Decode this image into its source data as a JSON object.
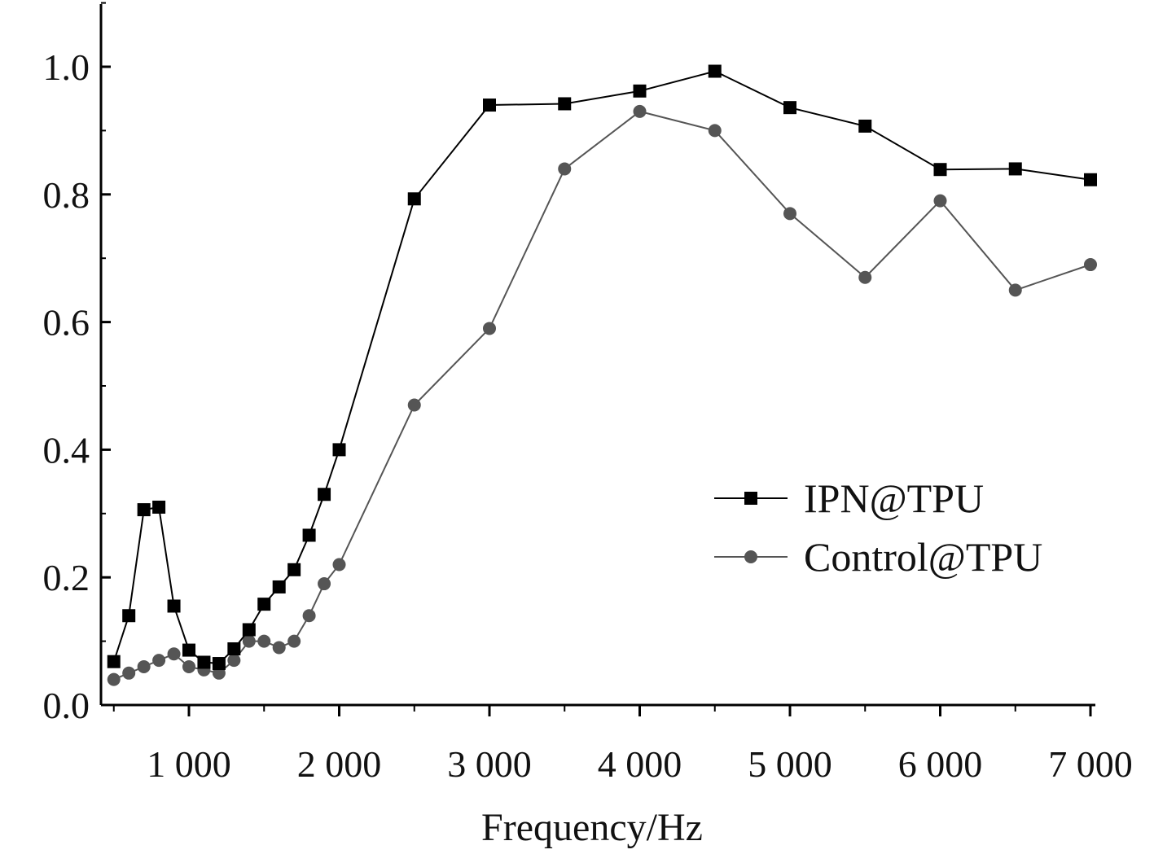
{
  "chart_data": {
    "type": "line",
    "title": "",
    "xlabel": "Frequency/Hz",
    "ylabel": "",
    "xlim": [
      450,
      7030
    ],
    "ylim": [
      0,
      1.1
    ],
    "grid": false,
    "legend_position": "center-right",
    "x_ticks": [
      {
        "value": 1000,
        "label": "1 000"
      },
      {
        "value": 2000,
        "label": "2 000"
      },
      {
        "value": 3000,
        "label": "3 000"
      },
      {
        "value": 4000,
        "label": "4 000"
      },
      {
        "value": 5000,
        "label": "5 000"
      },
      {
        "value": 6000,
        "label": "6 000"
      },
      {
        "value": 7000,
        "label": "7 000"
      }
    ],
    "y_ticks": [
      {
        "value": 0.0,
        "label": "0.0"
      },
      {
        "value": 0.2,
        "label": "0.2"
      },
      {
        "value": 0.4,
        "label": "0.4"
      },
      {
        "value": 0.6,
        "label": "0.6"
      },
      {
        "value": 0.8,
        "label": "0.8"
      },
      {
        "value": 1.0,
        "label": "1.0"
      }
    ],
    "series": [
      {
        "name": "IPN@TPU",
        "color": "#000000",
        "marker": "square",
        "points": [
          [
            500,
            0.068
          ],
          [
            600,
            0.14
          ],
          [
            700,
            0.306
          ],
          [
            800,
            0.31
          ],
          [
            900,
            0.155
          ],
          [
            1000,
            0.086
          ],
          [
            1100,
            0.067
          ],
          [
            1200,
            0.065
          ],
          [
            1300,
            0.088
          ],
          [
            1400,
            0.118
          ],
          [
            1500,
            0.158
          ],
          [
            1600,
            0.185
          ],
          [
            1700,
            0.212
          ],
          [
            1800,
            0.266
          ],
          [
            1900,
            0.33
          ],
          [
            2000,
            0.4
          ],
          [
            2500,
            0.793
          ],
          [
            3000,
            0.94
          ],
          [
            3500,
            0.942
          ],
          [
            4000,
            0.962
          ],
          [
            4500,
            0.993
          ],
          [
            5000,
            0.936
          ],
          [
            5500,
            0.907
          ],
          [
            6000,
            0.839
          ],
          [
            6500,
            0.84
          ],
          [
            7000,
            0.823
          ]
        ]
      },
      {
        "name": "Control@TPU",
        "color": "#555555",
        "marker": "circle",
        "points": [
          [
            500,
            0.04
          ],
          [
            600,
            0.05
          ],
          [
            700,
            0.06
          ],
          [
            800,
            0.07
          ],
          [
            900,
            0.08
          ],
          [
            1000,
            0.06
          ],
          [
            1100,
            0.055
          ],
          [
            1200,
            0.05
          ],
          [
            1300,
            0.07
          ],
          [
            1400,
            0.1
          ],
          [
            1500,
            0.1
          ],
          [
            1600,
            0.09
          ],
          [
            1700,
            0.1
          ],
          [
            1800,
            0.14
          ],
          [
            1900,
            0.19
          ],
          [
            2000,
            0.22
          ],
          [
            2500,
            0.47
          ],
          [
            3000,
            0.59
          ],
          [
            3500,
            0.84
          ],
          [
            4000,
            0.93
          ],
          [
            4500,
            0.9
          ],
          [
            5000,
            0.77
          ],
          [
            5500,
            0.67
          ],
          [
            6000,
            0.79
          ],
          [
            6500,
            0.65
          ],
          [
            7000,
            0.69
          ]
        ]
      }
    ]
  }
}
